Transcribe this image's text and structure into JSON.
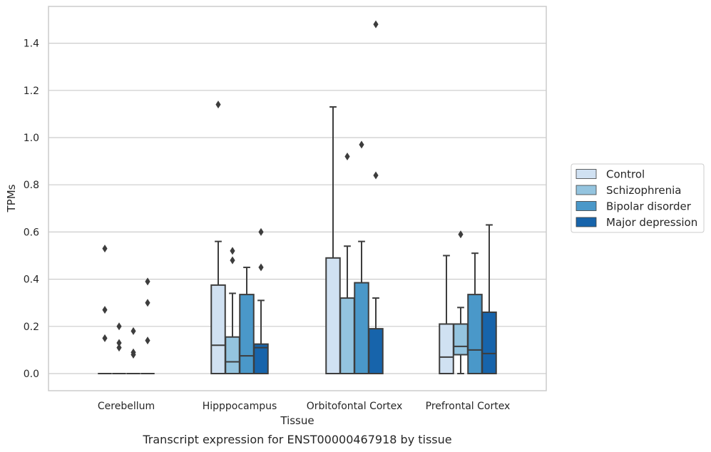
{
  "caption": "Transcript expression for ENST00000467918 by tissue",
  "chart_data": {
    "type": "box",
    "title": "",
    "xlabel": "Tissue",
    "ylabel": "TPMs",
    "ylim": [
      -0.07,
      1.56
    ],
    "yticks": [
      "0.0",
      "0.2",
      "0.4",
      "0.6",
      "0.8",
      "1.0",
      "1.2",
      "1.4"
    ],
    "grid": "horizontal",
    "legend_position": "right",
    "categories": [
      "Cerebellum",
      "Hipppocampus",
      "Orbitofontal Cortex",
      "Prefrontal Cortex"
    ],
    "series": [
      {
        "name": "Control",
        "color": "#d0e1f2",
        "boxes": [
          {
            "q1": 0,
            "median": 0,
            "q3": 0,
            "whisker_low": 0,
            "whisker_high": 0,
            "outliers": [
              0.53,
              0.27,
              0.15
            ]
          },
          {
            "q1": 0,
            "median": 0.12,
            "q3": 0.375,
            "whisker_low": 0,
            "whisker_high": 0.56,
            "outliers": [
              1.14
            ]
          },
          {
            "q1": 0,
            "median": 0,
            "q3": 0.49,
            "whisker_low": 0,
            "whisker_high": 1.13,
            "outliers": []
          },
          {
            "q1": 0,
            "median": 0.07,
            "q3": 0.21,
            "whisker_low": 0,
            "whisker_high": 0.5,
            "outliers": []
          }
        ]
      },
      {
        "name": "Schizophrenia",
        "color": "#94c4df",
        "boxes": [
          {
            "q1": 0,
            "median": 0,
            "q3": 0,
            "whisker_low": 0,
            "whisker_high": 0,
            "outliers": [
              0.2,
              0.13,
              0.11
            ]
          },
          {
            "q1": 0,
            "median": 0.05,
            "q3": 0.155,
            "whisker_low": 0,
            "whisker_high": 0.34,
            "outliers": [
              0.52,
              0.48
            ]
          },
          {
            "q1": 0,
            "median": 0,
            "q3": 0.32,
            "whisker_low": 0,
            "whisker_high": 0.54,
            "outliers": [
              0.92
            ]
          },
          {
            "q1": 0.08,
            "median": 0.115,
            "q3": 0.21,
            "whisker_low": 0,
            "whisker_high": 0.28,
            "outliers": [
              0.59
            ]
          }
        ]
      },
      {
        "name": "Bipolar disorder",
        "color": "#4a98c9",
        "boxes": [
          {
            "q1": 0,
            "median": 0,
            "q3": 0,
            "whisker_low": 0,
            "whisker_high": 0,
            "outliers": [
              0.18,
              0.09,
              0.08
            ]
          },
          {
            "q1": 0,
            "median": 0.075,
            "q3": 0.335,
            "whisker_low": 0,
            "whisker_high": 0.45,
            "outliers": []
          },
          {
            "q1": 0,
            "median": 0,
            "q3": 0.385,
            "whisker_low": 0,
            "whisker_high": 0.56,
            "outliers": [
              0.97
            ]
          },
          {
            "q1": 0,
            "median": 0.1,
            "q3": 0.335,
            "whisker_low": 0,
            "whisker_high": 0.51,
            "outliers": []
          }
        ]
      },
      {
        "name": "Major depression",
        "color": "#1764ab",
        "boxes": [
          {
            "q1": 0,
            "median": 0,
            "q3": 0,
            "whisker_low": 0,
            "whisker_high": 0,
            "outliers": [
              0.39,
              0.3,
              0.14
            ]
          },
          {
            "q1": 0,
            "median": 0.11,
            "q3": 0.125,
            "whisker_low": 0,
            "whisker_high": 0.31,
            "outliers": [
              0.6,
              0.45
            ]
          },
          {
            "q1": 0,
            "median": 0,
            "q3": 0.19,
            "whisker_low": 0,
            "whisker_high": 0.32,
            "outliers": [
              1.48,
              0.84
            ]
          },
          {
            "q1": 0,
            "median": 0.085,
            "q3": 0.26,
            "whisker_low": 0,
            "whisker_high": 0.63,
            "outliers": []
          }
        ]
      }
    ]
  }
}
